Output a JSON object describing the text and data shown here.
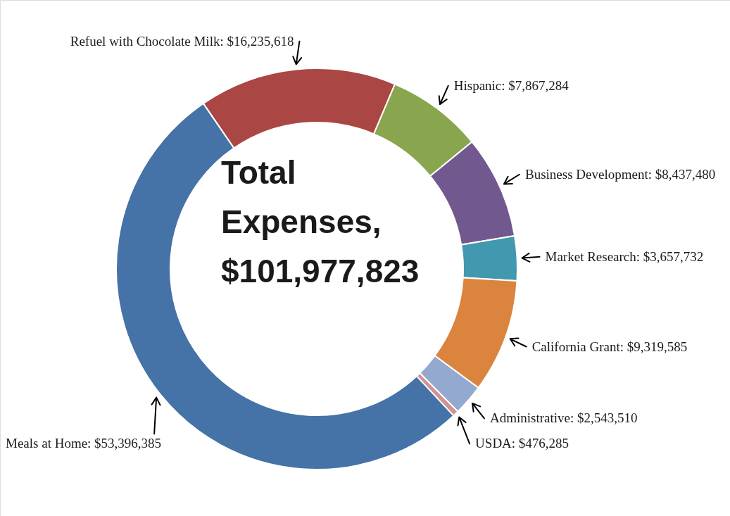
{
  "chart_data": {
    "type": "donut",
    "categories": [
      "Meals at Home",
      "Refuel with Chocolate Milk",
      "Hispanic",
      "Business Development",
      "Market Research",
      "California Grant",
      "Administrative",
      "USDA"
    ],
    "values": [
      53396385,
      16235618,
      7867284,
      8437480,
      3657732,
      9319585,
      2543510,
      476285
    ],
    "colors": [
      "#4572a7",
      "#aa4643",
      "#89a54e",
      "#71588f",
      "#4198af",
      "#db843d",
      "#93a9cf",
      "#d19392"
    ],
    "value_labels": [
      "$53,396,385",
      "$16,235,618",
      "$7,867,284",
      "$8,437,480",
      "$3,657,732",
      "$9,319,585",
      "$2,543,510",
      "$476,285"
    ],
    "annotations": [
      "Total Expenses, $101,977,823"
    ]
  }
}
